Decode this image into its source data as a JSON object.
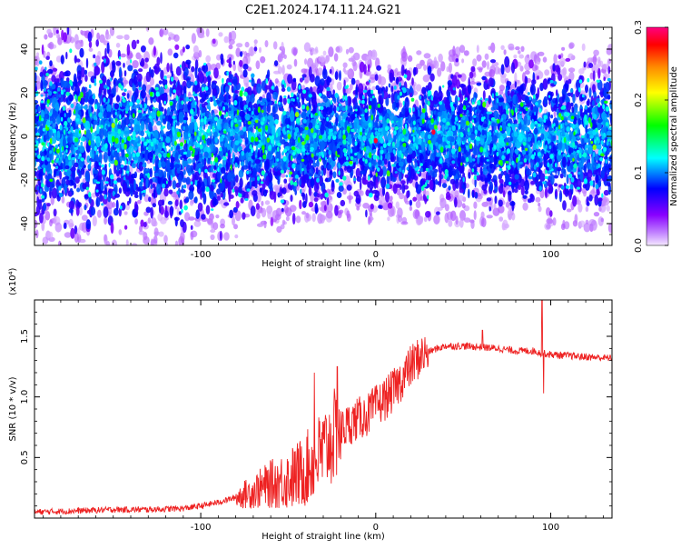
{
  "figure": {
    "title": "C2E1.2024.174.11.24.G21"
  },
  "chart_data": [
    {
      "type": "heatmap",
      "title": "C2E1.2024.174.11.24.G21",
      "xlabel": "Height of straight line (km)",
      "ylabel": "Frequency (Hz)",
      "xlim": [
        -195,
        135
      ],
      "ylim": [
        -50,
        50
      ],
      "x_ticks": [
        -100,
        0,
        100
      ],
      "y_ticks": [
        -40,
        -20,
        0,
        20,
        40
      ],
      "colorbar": {
        "label": "Normalized spectral amplitude",
        "range": [
          0.0,
          0.3
        ],
        "ticks": [
          0.0,
          0.1,
          0.2,
          0.3
        ],
        "colors": [
          "#f4e8ff",
          "#8800ff",
          "#0000ff",
          "#00ffff",
          "#00ff00",
          "#ffff00",
          "#ff8800",
          "#ff0000",
          "#ff0080"
        ]
      },
      "band_halfwidth_profile": {
        "x": [
          -195,
          -160,
          -130,
          -100,
          -80,
          -60,
          -40,
          -20,
          0,
          20,
          40,
          60,
          80,
          100,
          120,
          135
        ],
        "y": [
          46,
          48,
          46,
          44,
          40,
          38,
          36,
          34,
          33,
          34,
          34,
          35,
          36,
          36,
          36,
          36
        ]
      },
      "hotspots": [
        {
          "x": 0,
          "y": -2,
          "value": 0.3
        },
        {
          "x": 33,
          "y": 2,
          "value": 0.3
        },
        {
          "x": -150,
          "y": 5,
          "value": 0.2
        },
        {
          "x": -45,
          "y": 10,
          "value": 0.2
        },
        {
          "x": 125,
          "y": -5,
          "value": 0.2
        }
      ]
    },
    {
      "type": "line",
      "xlabel": "Height of straight line (km)",
      "ylabel": "SNR (10 * v/v)",
      "y_multiplier": "(x10⁴)",
      "xlim": [
        -195,
        135
      ],
      "ylim": [
        0,
        18000
      ],
      "x_ticks": [
        -100,
        0,
        100
      ],
      "y_ticks": [
        5000,
        10000,
        15000
      ],
      "y_tick_labels": [
        "0.5",
        "1.0",
        "1.5"
      ],
      "series": [
        {
          "color": "#ee2222",
          "x": [
            -195,
            -170,
            -150,
            -130,
            -110,
            -100,
            -90,
            -80,
            -70,
            -60,
            -50,
            -45,
            -40,
            -35,
            -30,
            -25,
            -20,
            -15,
            -10,
            -5,
            0,
            5,
            10,
            15,
            20,
            25,
            30,
            35,
            40,
            50,
            60,
            70,
            80,
            90,
            95,
            100,
            110,
            120,
            135
          ],
          "y": [
            500,
            600,
            700,
            700,
            800,
            1000,
            1300,
            1700,
            2200,
            2800,
            3200,
            3500,
            4000,
            4800,
            5500,
            6500,
            7200,
            7800,
            8200,
            8500,
            9200,
            9800,
            10500,
            11500,
            12500,
            13300,
            13700,
            14000,
            14200,
            14200,
            14100,
            14000,
            13800,
            13800,
            13600,
            13500,
            13400,
            13300,
            13200
          ]
        }
      ],
      "annotations": [
        {
          "x": 61,
          "y": 15500
        },
        {
          "x": 95,
          "y": 18000
        },
        {
          "x": 96,
          "y": 10300
        },
        {
          "x": -35,
          "y": 12000
        },
        {
          "x": -22,
          "y": 12500
        }
      ]
    }
  ]
}
